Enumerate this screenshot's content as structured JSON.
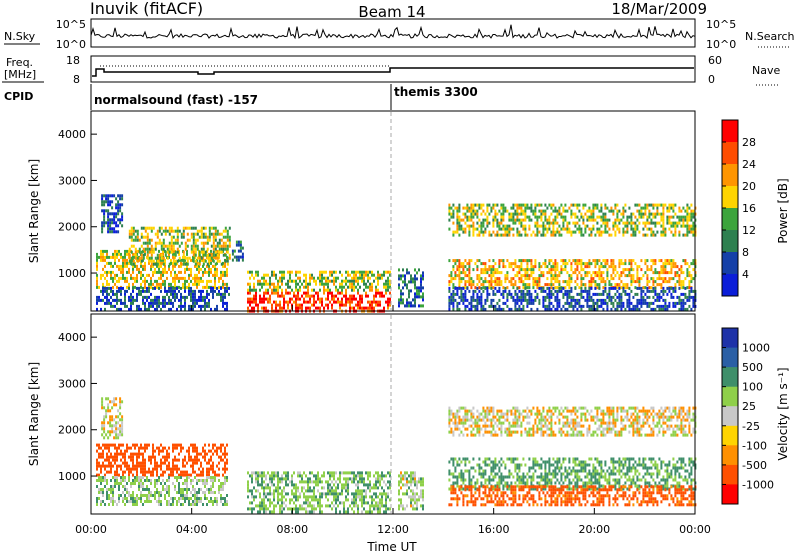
{
  "header": {
    "station": "Inuvik (fitACF)",
    "beam": "Beam 14",
    "date": "18/Mar/2009"
  },
  "noise_panel": {
    "left_label": "N.Sky",
    "right_label": "N.Search",
    "left_ticks": [
      "10^5",
      "10^0"
    ],
    "right_ticks": [
      "10^5",
      "10^0"
    ]
  },
  "freq_panel": {
    "left_label_line1": "Freq.",
    "left_label_line2": "[MHz]",
    "left_ticks": [
      "18",
      "8"
    ],
    "right_label": "Nave",
    "right_ticks": [
      "60",
      "0"
    ]
  },
  "cpid_panel": {
    "label": "CPID",
    "modes": [
      {
        "name": "normalsound (fast) -157",
        "start_hour": 0
      },
      {
        "name": "themis 3300",
        "start_hour": 12
      }
    ]
  },
  "power_panel": {
    "ylabel": "Slant Range [km]",
    "yticks": [
      "4000",
      "3000",
      "2000",
      "1000"
    ],
    "colorbar_label": "Power [dB]",
    "colorbar_ticks": [
      "28",
      "24",
      "20",
      "16",
      "12",
      "8",
      "4"
    ],
    "colorbar_colors": [
      "#ff0000",
      "#ff4d00",
      "#ff9500",
      "#ffd400",
      "#3ca43c",
      "#2e8050",
      "#1540a8",
      "#0b1ed8"
    ]
  },
  "velocity_panel": {
    "ylabel": "Slant Range [km]",
    "yticks": [
      "4000",
      "3000",
      "2000",
      "1000"
    ],
    "colorbar_label": "Velocity [m s⁻¹]",
    "colorbar_ticks": [
      "1000",
      "500",
      "100",
      "25",
      "-25",
      "-100",
      "-500",
      "-1000"
    ],
    "colorbar_colors": [
      "#1e32a8",
      "#2a5fa5",
      "#3f8f6a",
      "#8fd04a",
      "#c8c8c8",
      "#ffd400",
      "#ff9000",
      "#ff5000",
      "#ff0000"
    ]
  },
  "x_axis": {
    "label": "Time UT",
    "ticks": [
      "00:00",
      "04:00",
      "08:00",
      "12:00",
      "16:00",
      "20:00",
      "00:00"
    ]
  },
  "chart_data": {
    "type": "heatmap",
    "title": "Inuvik (fitACF) Beam 14 18/Mar/2009",
    "xlabel": "Time UT",
    "ylabel": "Slant Range [km]",
    "xlim_hours": [
      0,
      24
    ],
    "ylim_km": [
      180,
      4500
    ],
    "series": [
      {
        "name": "Power [dB]",
        "clim": [
          0,
          30
        ],
        "patches": [
          {
            "t": [
              0.4,
              1.2
            ],
            "r": [
              1900,
              2700
            ],
            "v": 6
          },
          {
            "t": [
              0.2,
              5.4
            ],
            "r": [
              700,
              1500
            ],
            "v": 18
          },
          {
            "t": [
              1.5,
              5.5
            ],
            "r": [
              1200,
              2000
            ],
            "v": 16
          },
          {
            "t": [
              0.2,
              5.5
            ],
            "r": [
              200,
              700
            ],
            "v": 6
          },
          {
            "t": [
              5.6,
              6.0
            ],
            "r": [
              1300,
              1700
            ],
            "v": 8
          },
          {
            "t": [
              6.2,
              11.9
            ],
            "r": [
              200,
              600
            ],
            "v": 28
          },
          {
            "t": [
              6.2,
              11.9
            ],
            "r": [
              600,
              1050
            ],
            "v": 16
          },
          {
            "t": [
              12.2,
              13.2
            ],
            "r": [
              300,
              1100
            ],
            "v": 8
          },
          {
            "t": [
              14.2,
              24.0
            ],
            "r": [
              700,
              1300
            ],
            "v": 20
          },
          {
            "t": [
              14.2,
              24.0
            ],
            "r": [
              1800,
              2500
            ],
            "v": 16
          },
          {
            "t": [
              14.2,
              24.0
            ],
            "r": [
              200,
              700
            ],
            "v": 6
          }
        ]
      },
      {
        "name": "Velocity [m s⁻¹]",
        "clim": [
          -1000,
          1000
        ],
        "patches": [
          {
            "t": [
              0.4,
              1.2
            ],
            "r": [
              1800,
              2700
            ],
            "v": 0
          },
          {
            "t": [
              0.2,
              5.4
            ],
            "r": [
              1000,
              1700
            ],
            "v": -200
          },
          {
            "t": [
              0.2,
              5.4
            ],
            "r": [
              400,
              1000
            ],
            "v": 60
          },
          {
            "t": [
              6.2,
              11.9
            ],
            "r": [
              200,
              1100
            ],
            "v": 80
          },
          {
            "t": [
              12.2,
              13.2
            ],
            "r": [
              300,
              1100
            ],
            "v": 40
          },
          {
            "t": [
              14.2,
              24.0
            ],
            "r": [
              1900,
              2500
            ],
            "v": 0
          },
          {
            "t": [
              14.2,
              24.0
            ],
            "r": [
              700,
              1400
            ],
            "v": 120
          },
          {
            "t": [
              14.2,
              24.0
            ],
            "r": [
              400,
              800
            ],
            "v": -150
          }
        ]
      }
    ]
  }
}
